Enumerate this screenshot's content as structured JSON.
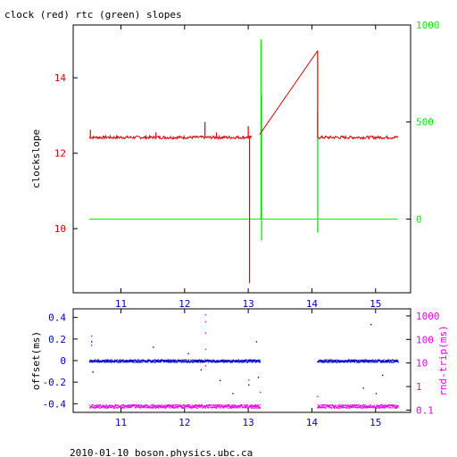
{
  "title": "clock (red) rtc (green) slopes",
  "footer": "2010-01-10 boson.physics.ubc.ca",
  "colors": {
    "clock": "#dd0000",
    "rtc": "#00ee00",
    "offset": "#0000cc",
    "rndtrip": "#ee00ee",
    "axis": "#000000"
  },
  "chart_data": [
    {
      "type": "line",
      "title": "clock (red) rtc (green) slopes",
      "xlabel": "",
      "ylabel": "clockslope",
      "y2label": "",
      "xlim": [
        10.25,
        15.55
      ],
      "ylim": [
        8.3,
        15.4
      ],
      "y2lim": [
        -380,
        1000
      ],
      "x_ticks": [
        11,
        12,
        13,
        14,
        15
      ],
      "x_tick_labels": [
        "11",
        "12",
        "13",
        "14",
        "15"
      ],
      "y_ticks": [
        10,
        12,
        14
      ],
      "y_tick_labels": [
        "10",
        "12",
        "14"
      ],
      "y2_ticks": [
        0,
        500,
        1000
      ],
      "y2_tick_labels": [
        "0",
        "500",
        "1000"
      ],
      "series": [
        {
          "name": "clock",
          "axis": "left",
          "baseline": 12.42,
          "segments": [
            {
              "x": [
                10.5,
                13.05
              ],
              "y": [
                12.42,
                12.42
              ]
            },
            {
              "x": [
                13.18,
                14.09
              ],
              "y": [
                12.5,
                14.72
              ]
            },
            {
              "x": [
                14.09,
                15.35
              ],
              "y": [
                12.42,
                12.42
              ]
            }
          ],
          "spikes": [
            {
              "x": 10.52,
              "y": 12.62
            },
            {
              "x": 11.55,
              "y": 12.55
            },
            {
              "x": 12.32,
              "y": 12.83
            },
            {
              "x": 12.5,
              "y": 12.55
            },
            {
              "x": 13.0,
              "y": 12.72
            },
            {
              "x": 13.02,
              "y": 8.55
            },
            {
              "x": 14.09,
              "y": 14.72
            }
          ]
        },
        {
          "name": "rtc",
          "axis": "right",
          "baseline": 0,
          "segments": [
            {
              "x": [
                10.5,
                15.35
              ],
              "y": [
                0,
                0
              ]
            }
          ],
          "spikes": [
            {
              "x": 13.2,
              "y": 925
            },
            {
              "x": 13.21,
              "y": 640
            },
            {
              "x": 13.21,
              "y": -110
            },
            {
              "x": 14.09,
              "y": 550
            },
            {
              "x": 14.09,
              "y": -70
            }
          ]
        }
      ]
    },
    {
      "type": "scatter",
      "xlabel": "",
      "ylabel": "offset(ms)",
      "y2label": "rnd-trip(ms)",
      "xlim": [
        10.25,
        15.55
      ],
      "ylim": [
        -0.48,
        0.48
      ],
      "y2_scale": "log",
      "y2lim": [
        0.08,
        2000
      ],
      "x_ticks": [
        11,
        12,
        13,
        14,
        15
      ],
      "x_tick_labels": [
        "11",
        "12",
        "13",
        "14",
        "15"
      ],
      "y_ticks": [
        -0.4,
        -0.2,
        0,
        0.2,
        0.4
      ],
      "y_tick_labels": [
        "-0.4",
        "-0.2",
        "0",
        "0.2",
        "0.4"
      ],
      "y2_ticks": [
        0.1,
        1,
        10,
        100,
        1000
      ],
      "y2_tick_labels": [
        "0.1",
        "1",
        "10",
        "100",
        "1000"
      ],
      "series": [
        {
          "name": "offset",
          "axis": "left",
          "level": 0.0,
          "ranges": [
            [
              10.5,
              13.18
            ],
            [
              14.08,
              15.35
            ]
          ],
          "outliers": [
            {
              "x": 10.53,
              "y": 0.18
            },
            {
              "x": 10.55,
              "y": -0.1
            },
            {
              "x": 11.5,
              "y": 0.13
            },
            {
              "x": 12.05,
              "y": 0.07
            },
            {
              "x": 12.25,
              "y": -0.08
            },
            {
              "x": 12.55,
              "y": -0.18
            },
            {
              "x": 12.75,
              "y": -0.3
            },
            {
              "x": 13.0,
              "y": -0.22
            },
            {
              "x": 13.12,
              "y": 0.18
            },
            {
              "x": 13.15,
              "y": -0.15
            },
            {
              "x": 14.8,
              "y": -0.25
            },
            {
              "x": 14.92,
              "y": 0.34
            },
            {
              "x": 15.0,
              "y": -0.3
            },
            {
              "x": 15.1,
              "y": -0.13
            }
          ]
        },
        {
          "name": "rnd-trip",
          "axis": "right",
          "level": 0.15,
          "ranges": [
            [
              10.5,
              13.18
            ],
            [
              14.08,
              15.35
            ]
          ],
          "outliers": [
            {
              "x": 10.53,
              "y": 150
            },
            {
              "x": 10.53,
              "y": 60
            },
            {
              "x": 12.32,
              "y": 1200
            },
            {
              "x": 12.32,
              "y": 600
            },
            {
              "x": 12.32,
              "y": 200
            },
            {
              "x": 12.32,
              "y": 40
            },
            {
              "x": 12.32,
              "y": 8
            },
            {
              "x": 13.0,
              "y": 2
            },
            {
              "x": 13.18,
              "y": 0.6
            },
            {
              "x": 14.08,
              "y": 0.4
            }
          ]
        }
      ]
    }
  ]
}
